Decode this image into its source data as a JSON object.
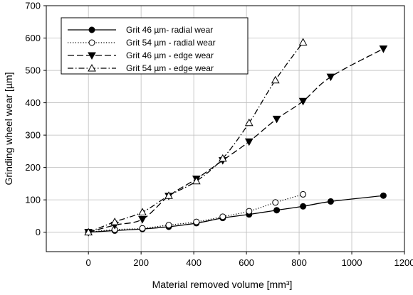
{
  "chart_data": {
    "type": "line",
    "title": "",
    "xlabel": "Material removed volume  [mm³]",
    "ylabel": "Grinding wheel  wear [µm]",
    "xlim": [
      -160,
      1200
    ],
    "ylim": [
      -60,
      700
    ],
    "x_ticks": [
      0,
      200,
      400,
      600,
      800,
      1000,
      1200
    ],
    "y_ticks": [
      0,
      100,
      200,
      300,
      400,
      500,
      600,
      700
    ],
    "grid": true,
    "legend_position": "top-left",
    "series": [
      {
        "name": "Grit 46 µm-  radial wear",
        "line_style": "solid",
        "marker": "filled-circle",
        "color": "#000000",
        "x": [
          0,
          100,
          205,
          305,
          410,
          510,
          610,
          715,
          815,
          920,
          1120
        ],
        "y": [
          0,
          5,
          10,
          17,
          28,
          44,
          55,
          68,
          80,
          95,
          113
        ]
      },
      {
        "name": "Grit 54 µm - radial wear",
        "line_style": "dotted",
        "marker": "open-circle",
        "color": "#000000",
        "x": [
          0,
          100,
          205,
          305,
          410,
          510,
          610,
          710,
          815
        ],
        "y": [
          0,
          8,
          12,
          22,
          32,
          48,
          65,
          92,
          117
        ]
      },
      {
        "name": "Grit 46 µm - edge wear",
        "line_style": "dashed",
        "marker": "filled-triangle-down",
        "color": "#000000",
        "x": [
          0,
          100,
          205,
          305,
          410,
          510,
          610,
          715,
          815,
          920,
          1120
        ],
        "y": [
          0,
          22,
          40,
          112,
          165,
          222,
          280,
          350,
          405,
          480,
          567
        ]
      },
      {
        "name": "Grit 54 µm - edge wear",
        "line_style": "dash-dot",
        "marker": "open-triangle-up",
        "color": "#000000",
        "x": [
          0,
          100,
          205,
          305,
          410,
          510,
          610,
          710,
          815
        ],
        "y": [
          0,
          32,
          62,
          113,
          158,
          228,
          338,
          470,
          587
        ]
      }
    ]
  }
}
